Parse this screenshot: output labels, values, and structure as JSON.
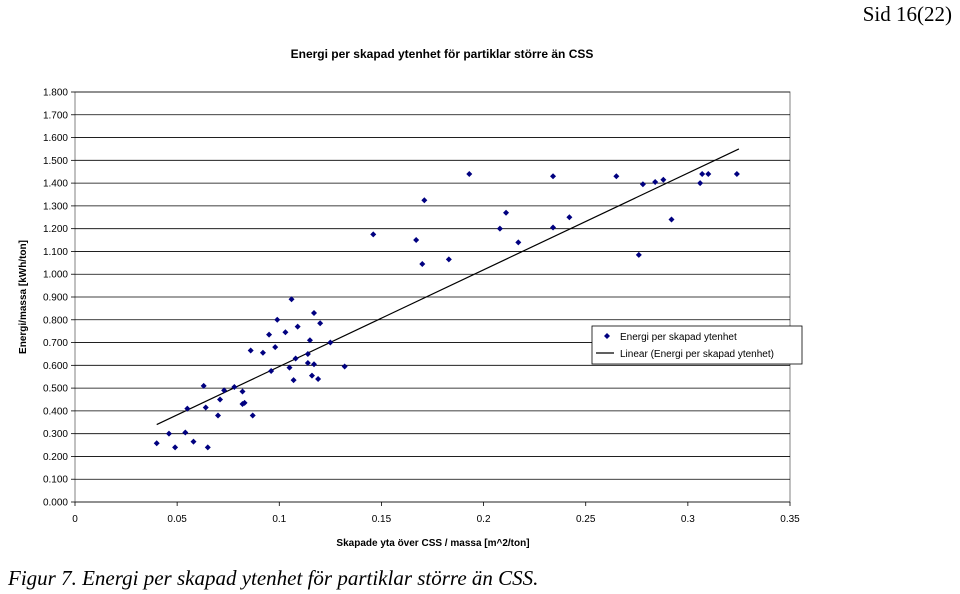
{
  "page": {
    "page_number": "Sid 16(22)"
  },
  "caption": {
    "text": "Figur 7. Energi per skapad ytenhet för partiklar större än CSS."
  },
  "colors": {
    "marker": "#000080",
    "trendline": "#000000",
    "grid": "#000000",
    "frame": "#808080"
  },
  "chart_data": {
    "type": "scatter",
    "title": "Energi per skapad ytenhet för partiklar större än CSS",
    "xlabel": "Skapade yta över CSS / massa [m^2/ton]",
    "ylabel": "Energi/massa [kWh/ton]",
    "xlim": [
      0,
      0.35
    ],
    "ylim": [
      0,
      1.8
    ],
    "xticks": [
      0,
      0.05,
      0.1,
      0.15,
      0.2,
      0.25,
      0.3,
      0.35
    ],
    "xtick_labels": [
      "0",
      "0.05",
      "0.1",
      "0.15",
      "0.2",
      "0.25",
      "0.3",
      "0.35"
    ],
    "yticks": [
      0,
      0.1,
      0.2,
      0.3,
      0.4,
      0.5,
      0.6,
      0.7,
      0.8,
      0.9,
      1.0,
      1.1,
      1.2,
      1.3,
      1.4,
      1.5,
      1.6,
      1.7,
      1.8
    ],
    "ytick_labels": [
      "0.000",
      "0.100",
      "0.200",
      "0.300",
      "0.400",
      "0.500",
      "0.600",
      "0.700",
      "0.800",
      "0.900",
      "1.000",
      "1.100",
      "1.200",
      "1.300",
      "1.400",
      "1.500",
      "1.600",
      "1.700",
      "1.800"
    ],
    "grid": "horizontal",
    "legend_position": "right",
    "series": [
      {
        "name": "Energi per skapad ytenhet",
        "kind": "points",
        "marker": "diamond",
        "x": [
          0.04,
          0.046,
          0.049,
          0.054,
          0.055,
          0.058,
          0.063,
          0.064,
          0.065,
          0.07,
          0.071,
          0.073,
          0.078,
          0.082,
          0.082,
          0.083,
          0.086,
          0.087,
          0.092,
          0.095,
          0.096,
          0.098,
          0.099,
          0.103,
          0.105,
          0.106,
          0.107,
          0.108,
          0.109,
          0.114,
          0.114,
          0.115,
          0.116,
          0.117,
          0.117,
          0.119,
          0.12,
          0.125,
          0.132,
          0.146,
          0.167,
          0.17,
          0.171,
          0.183,
          0.193,
          0.208,
          0.211,
          0.217,
          0.234,
          0.234,
          0.242,
          0.265,
          0.276,
          0.278,
          0.284,
          0.288,
          0.292,
          0.306,
          0.307,
          0.31,
          0.324
        ],
        "y": [
          0.258,
          0.3,
          0.24,
          0.305,
          0.41,
          0.265,
          0.51,
          0.415,
          0.24,
          0.38,
          0.45,
          0.49,
          0.505,
          0.43,
          0.485,
          0.435,
          0.665,
          0.38,
          0.655,
          0.735,
          0.575,
          0.68,
          0.8,
          0.745,
          0.59,
          0.89,
          0.535,
          0.63,
          0.77,
          0.65,
          0.61,
          0.71,
          0.555,
          0.83,
          0.605,
          0.54,
          0.785,
          0.7,
          0.595,
          1.175,
          1.15,
          1.045,
          1.325,
          1.065,
          1.44,
          1.2,
          1.27,
          1.14,
          1.205,
          1.43,
          1.25,
          1.43,
          1.085,
          1.395,
          1.405,
          1.415,
          1.24,
          1.4,
          1.44,
          1.44,
          1.44
        ]
      },
      {
        "name": "Linear (Energi per skapad ytenhet)",
        "kind": "line",
        "x": [
          0.04,
          0.325
        ],
        "y": [
          0.34,
          1.55
        ]
      }
    ]
  }
}
